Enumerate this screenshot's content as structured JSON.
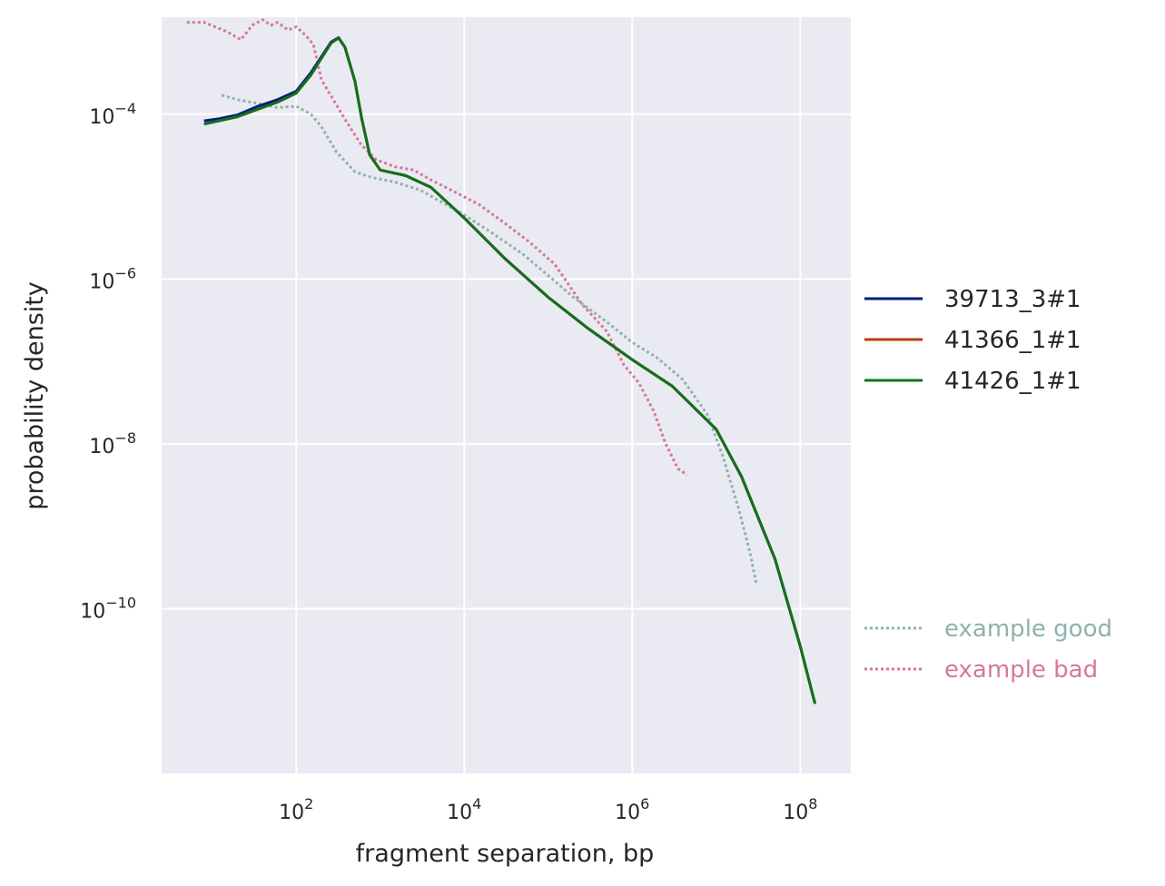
{
  "chart_data": {
    "type": "line",
    "xlabel": "fragment separation, bp",
    "ylabel": "probability density",
    "xscale": "log",
    "yscale": "log",
    "xlim": [
      2.5,
      400000000
    ],
    "ylim": [
      1e-12,
      0.0015
    ],
    "grid": true,
    "legend_position": "right",
    "x_ticks": [
      {
        "value": 100,
        "base": "10",
        "exp": "2"
      },
      {
        "value": 10000,
        "base": "10",
        "exp": "4"
      },
      {
        "value": 1000000,
        "base": "10",
        "exp": "6"
      },
      {
        "value": 100000000,
        "base": "10",
        "exp": "8"
      }
    ],
    "y_ticks": [
      {
        "value": 0.0001,
        "base": "10",
        "exp": "−4"
      },
      {
        "value": 1e-06,
        "base": "10",
        "exp": "−6"
      },
      {
        "value": 1e-08,
        "base": "10",
        "exp": "−8"
      },
      {
        "value": 1e-10,
        "base": "10",
        "exp": "−10"
      }
    ],
    "series": [
      {
        "name": "39713_3#1",
        "color": "#001c7f",
        "style": "solid",
        "width": 3,
        "points": [
          [
            8,
            8.3e-05
          ],
          [
            12,
            8.8e-05
          ],
          [
            20,
            9.8e-05
          ],
          [
            35,
            0.000125
          ],
          [
            60,
            0.00015
          ],
          [
            100,
            0.00019
          ],
          [
            150,
            0.00032
          ],
          [
            200,
            0.0005
          ],
          [
            260,
            0.00075
          ],
          [
            320,
            0.00085
          ],
          [
            380,
            0.00065
          ],
          [
            500,
            0.00025
          ],
          [
            600,
            9e-05
          ],
          [
            750,
            3.2e-05
          ],
          [
            1000,
            2.1e-05
          ],
          [
            2000,
            1.8e-05
          ],
          [
            4000,
            1.3e-05
          ],
          [
            10000,
            5.5e-06
          ],
          [
            30000,
            1.8e-06
          ],
          [
            100000,
            6e-07
          ],
          [
            300000,
            2.5e-07
          ],
          [
            1000000,
            1.05e-07
          ],
          [
            3000000,
            5e-08
          ],
          [
            10000000,
            1.5e-08
          ],
          [
            20000000,
            4e-09
          ],
          [
            50000000,
            4e-10
          ],
          [
            100000000,
            3.5e-11
          ],
          [
            150000000,
            7e-12
          ]
        ]
      },
      {
        "name": "41366_1#1",
        "color": "#b1400d",
        "style": "solid",
        "width": 3,
        "points": [
          [
            8,
            7.6e-05
          ],
          [
            12,
            8.3e-05
          ],
          [
            20,
            9.3e-05
          ],
          [
            35,
            0.000115
          ],
          [
            60,
            0.00014
          ],
          [
            100,
            0.00018
          ],
          [
            150,
            0.0003
          ],
          [
            200,
            0.00048
          ],
          [
            260,
            0.00073
          ],
          [
            320,
            0.00084
          ],
          [
            380,
            0.00065
          ],
          [
            500,
            0.00025
          ],
          [
            600,
            9e-05
          ],
          [
            750,
            3.2e-05
          ],
          [
            1000,
            2.1e-05
          ],
          [
            2000,
            1.8e-05
          ],
          [
            4000,
            1.3e-05
          ],
          [
            10000,
            5.5e-06
          ],
          [
            30000,
            1.8e-06
          ],
          [
            100000,
            6e-07
          ],
          [
            300000,
            2.5e-07
          ],
          [
            1000000,
            1.05e-07
          ],
          [
            3000000,
            5e-08
          ],
          [
            10000000,
            1.5e-08
          ],
          [
            20000000,
            4e-09
          ],
          [
            50000000,
            4e-10
          ],
          [
            100000000,
            3.5e-11
          ],
          [
            150000000,
            7e-12
          ]
        ]
      },
      {
        "name": "41426_1#1",
        "color": "#12711c",
        "style": "solid",
        "width": 3,
        "points": [
          [
            8,
            7.6e-05
          ],
          [
            12,
            8.3e-05
          ],
          [
            20,
            9.3e-05
          ],
          [
            35,
            0.000115
          ],
          [
            60,
            0.00014
          ],
          [
            100,
            0.00018
          ],
          [
            150,
            0.0003
          ],
          [
            200,
            0.00048
          ],
          [
            260,
            0.00073
          ],
          [
            320,
            0.00084
          ],
          [
            380,
            0.00065
          ],
          [
            500,
            0.00025
          ],
          [
            600,
            9e-05
          ],
          [
            750,
            3.2e-05
          ],
          [
            1000,
            2.1e-05
          ],
          [
            2000,
            1.8e-05
          ],
          [
            4000,
            1.3e-05
          ],
          [
            10000,
            5.5e-06
          ],
          [
            30000,
            1.8e-06
          ],
          [
            100000,
            6e-07
          ],
          [
            300000,
            2.5e-07
          ],
          [
            1000000,
            1.05e-07
          ],
          [
            3000000,
            5e-08
          ],
          [
            10000000,
            1.5e-08
          ],
          [
            20000000,
            4e-09
          ],
          [
            50000000,
            4e-10
          ],
          [
            100000000,
            3.5e-11
          ],
          [
            150000000,
            7e-12
          ]
        ]
      },
      {
        "name": "example good",
        "color": "#8fb2ad",
        "style": "dotted",
        "width": 3,
        "legend_gap": true,
        "points": [
          [
            13,
            0.00017
          ],
          [
            20,
            0.00015
          ],
          [
            35,
            0.000135
          ],
          [
            60,
            0.00012
          ],
          [
            100,
            0.000125
          ],
          [
            150,
            0.0001
          ],
          [
            200,
            7e-05
          ],
          [
            300,
            3.5e-05
          ],
          [
            500,
            2e-05
          ],
          [
            800,
            1.7e-05
          ],
          [
            1500,
            1.5e-05
          ],
          [
            3000,
            1.2e-05
          ],
          [
            10000,
            6e-06
          ],
          [
            20000,
            3.8e-06
          ],
          [
            50000,
            2e-06
          ],
          [
            100000,
            1.1e-06
          ],
          [
            200000,
            6e-07
          ],
          [
            500000,
            3e-07
          ],
          [
            1000000,
            1.7e-07
          ],
          [
            2000000,
            1.1e-07
          ],
          [
            4000000,
            6e-08
          ],
          [
            8000000,
            2.2e-08
          ],
          [
            12000000,
            7e-09
          ],
          [
            18000000,
            1.8e-09
          ],
          [
            25000000,
            5e-10
          ],
          [
            30000000,
            2e-10
          ]
        ]
      },
      {
        "name": "example bad",
        "color": "#d5789d",
        "style": "dotted",
        "width": 3,
        "points": [
          [
            5,
            0.0013
          ],
          [
            8,
            0.0013
          ],
          [
            15,
            0.001
          ],
          [
            22,
            0.0008
          ],
          [
            30,
            0.0012
          ],
          [
            40,
            0.0014
          ],
          [
            50,
            0.0012
          ],
          [
            60,
            0.0013
          ],
          [
            80,
            0.00105
          ],
          [
            100,
            0.00115
          ],
          [
            130,
            0.0009
          ],
          [
            160,
            0.0007
          ],
          [
            200,
            0.00026
          ],
          [
            300,
            0.00013
          ],
          [
            400,
            8e-05
          ],
          [
            600,
            4.2e-05
          ],
          [
            900,
            2.8e-05
          ],
          [
            1500,
            2.3e-05
          ],
          [
            2500,
            2.1e-05
          ],
          [
            4000,
            1.6e-05
          ],
          [
            7000,
            1.2e-05
          ],
          [
            15000,
            8e-06
          ],
          [
            30000,
            4.8e-06
          ],
          [
            60000,
            2.8e-06
          ],
          [
            120000,
            1.5e-06
          ],
          [
            250000,
            5e-07
          ],
          [
            500000,
            2.3e-07
          ],
          [
            800000,
            9e-08
          ],
          [
            1200000,
            5.5e-08
          ],
          [
            1800000,
            2.5e-08
          ],
          [
            2500000,
            1e-08
          ],
          [
            3500000,
            5e-09
          ],
          [
            4500000,
            4.2e-09
          ]
        ]
      }
    ]
  }
}
